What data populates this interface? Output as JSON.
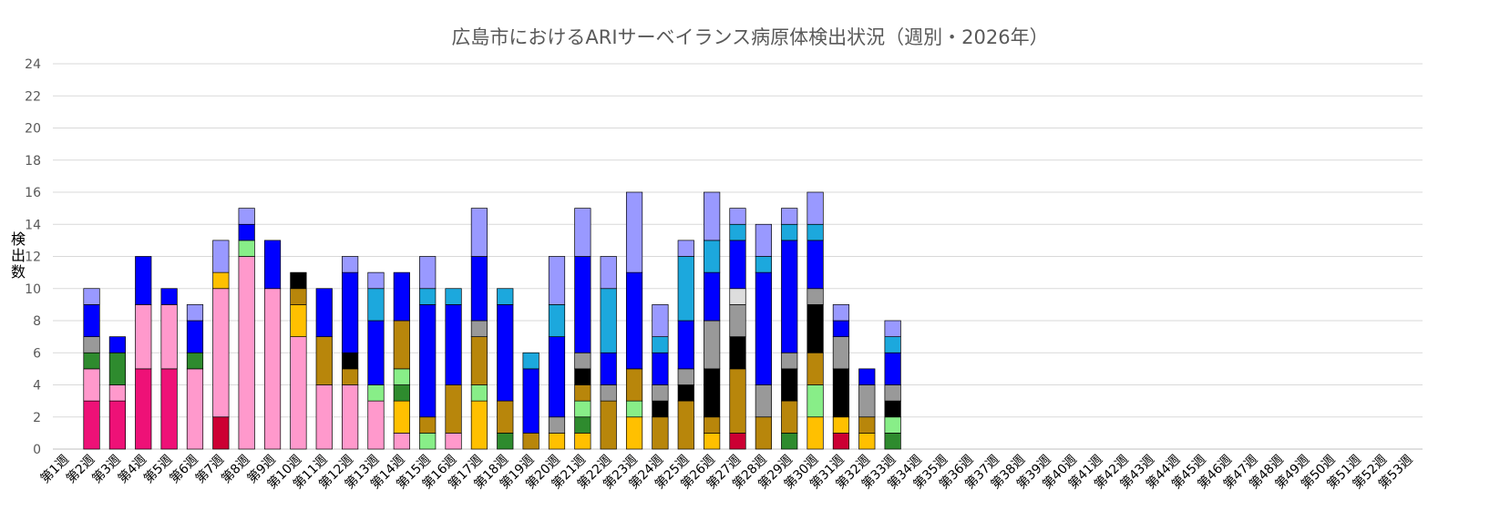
{
  "chart_data": {
    "type": "bar",
    "stacked": true,
    "title": "広島市におけるARIサーベイランス病原体検出状況（週別・2026年）",
    "xlabel": "",
    "ylabel": "検出数",
    "ylim": [
      0,
      24
    ],
    "yticks": [
      0,
      2,
      4,
      6,
      8,
      10,
      12,
      14,
      16,
      18,
      20,
      22,
      24
    ],
    "grid": true,
    "legend": "none",
    "categories": [
      "第1週",
      "第2週",
      "第3週",
      "第4週",
      "第5週",
      "第6週",
      "第7週",
      "第8週",
      "第9週",
      "第10週",
      "第11週",
      "第12週",
      "第13週",
      "第14週",
      "第15週",
      "第16週",
      "第17週",
      "第18週",
      "第19週",
      "第20週",
      "第21週",
      "第22週",
      "第23週",
      "第24週",
      "第25週",
      "第26週",
      "第27週",
      "第28週",
      "第29週",
      "第30週",
      "第31週",
      "第32週",
      "第33週",
      "第34週",
      "第35週",
      "第36週",
      "第37週",
      "第38週",
      "第39週",
      "第40週",
      "第41週",
      "第42週",
      "第43週",
      "第44週",
      "第45週",
      "第46週",
      "第47週",
      "第48週",
      "第49週",
      "第50週",
      "第51週",
      "第52週",
      "第53週"
    ],
    "series": [
      {
        "color": "#ee1177",
        "values": [
          0,
          3,
          3,
          5,
          5,
          0,
          0,
          0,
          0,
          0,
          0,
          0,
          0,
          0,
          0,
          0,
          0,
          0,
          0,
          0,
          0,
          0,
          0,
          0,
          0,
          0,
          0,
          0,
          0,
          0,
          0,
          0,
          0,
          0,
          0,
          0,
          0,
          0,
          0,
          0,
          0,
          0,
          0,
          0,
          0,
          0,
          0,
          0,
          0,
          0,
          0,
          0,
          0
        ]
      },
      {
        "color": "#cc0033",
        "values": [
          0,
          0,
          0,
          0,
          0,
          0,
          2,
          0,
          0,
          0,
          0,
          0,
          0,
          0,
          0,
          0,
          0,
          0,
          0,
          0,
          0,
          0,
          0,
          0,
          0,
          0,
          1,
          0,
          0,
          0,
          1,
          0,
          0,
          0,
          0,
          0,
          0,
          0,
          0,
          0,
          0,
          0,
          0,
          0,
          0,
          0,
          0,
          0,
          0,
          0,
          0,
          0,
          0
        ]
      },
      {
        "color": "#2e8b2e",
        "values": [
          0,
          0,
          0,
          0,
          0,
          0,
          0,
          0,
          0,
          0,
          0,
          0,
          0,
          0,
          0,
          0,
          0,
          1,
          0,
          0,
          0,
          0,
          0,
          0,
          0,
          0,
          0,
          0,
          1,
          0,
          0,
          0,
          1,
          0,
          0,
          0,
          0,
          0,
          0,
          0,
          0,
          0,
          0,
          0,
          0,
          0,
          0,
          0,
          0,
          0,
          0,
          0,
          0
        ]
      },
      {
        "color": "#ff99cc",
        "values": [
          0,
          2,
          1,
          4,
          4,
          5,
          8,
          12,
          10,
          7,
          4,
          4,
          3,
          1,
          0,
          1,
          0,
          0,
          0,
          0,
          0,
          0,
          0,
          0,
          0,
          0,
          0,
          0,
          0,
          0,
          0,
          0,
          0,
          0,
          0,
          0,
          0,
          0,
          0,
          0,
          0,
          0,
          0,
          0,
          0,
          0,
          0,
          0,
          0,
          0,
          0,
          0,
          0
        ]
      },
      {
        "color": "#ffc000",
        "values": [
          0,
          0,
          0,
          0,
          0,
          0,
          1,
          0,
          0,
          2,
          0,
          0,
          0,
          2,
          0,
          0,
          3,
          0,
          0,
          1,
          1,
          0,
          2,
          0,
          0,
          1,
          0,
          0,
          0,
          2,
          1,
          1,
          0,
          0,
          0,
          0,
          0,
          0,
          0,
          0,
          0,
          0,
          0,
          0,
          0,
          0,
          0,
          0,
          0,
          0,
          0,
          0,
          0
        ]
      },
      {
        "color": "#2e8b2e",
        "values": [
          0,
          1,
          2,
          0,
          0,
          1,
          0,
          0,
          0,
          0,
          0,
          0,
          0,
          1,
          0,
          0,
          0,
          0,
          0,
          0,
          1,
          0,
          0,
          0,
          0,
          0,
          0,
          0,
          0,
          0,
          0,
          0,
          0,
          0,
          0,
          0,
          0,
          0,
          0,
          0,
          0,
          0,
          0,
          0,
          0,
          0,
          0,
          0,
          0,
          0,
          0,
          0,
          0
        ]
      },
      {
        "color": "#88ee88",
        "values": [
          0,
          0,
          0,
          0,
          0,
          0,
          0,
          1,
          0,
          0,
          0,
          0,
          1,
          1,
          1,
          0,
          1,
          0,
          0,
          0,
          1,
          0,
          1,
          0,
          0,
          0,
          0,
          0,
          0,
          2,
          0,
          0,
          1,
          0,
          0,
          0,
          0,
          0,
          0,
          0,
          0,
          0,
          0,
          0,
          0,
          0,
          0,
          0,
          0,
          0,
          0,
          0,
          0
        ]
      },
      {
        "color": "#b8860b",
        "values": [
          0,
          0,
          0,
          0,
          0,
          0,
          0,
          0,
          0,
          1,
          3,
          1,
          0,
          3,
          1,
          3,
          3,
          2,
          1,
          0,
          1,
          3,
          2,
          2,
          3,
          1,
          4,
          2,
          2,
          2,
          0,
          1,
          0,
          0,
          0,
          0,
          0,
          0,
          0,
          0,
          0,
          0,
          0,
          0,
          0,
          0,
          0,
          0,
          0,
          0,
          0,
          0,
          0
        ]
      },
      {
        "color": "#000000",
        "values": [
          0,
          0,
          0,
          0,
          0,
          0,
          0,
          0,
          0,
          1,
          0,
          1,
          0,
          0,
          0,
          0,
          0,
          0,
          0,
          0,
          1,
          0,
          0,
          1,
          1,
          3,
          2,
          0,
          2,
          3,
          3,
          0,
          1,
          0,
          0,
          0,
          0,
          0,
          0,
          0,
          0,
          0,
          0,
          0,
          0,
          0,
          0,
          0,
          0,
          0,
          0,
          0,
          0
        ]
      },
      {
        "color": "#999999",
        "values": [
          0,
          1,
          0,
          0,
          0,
          0,
          0,
          0,
          0,
          0,
          0,
          0,
          0,
          0,
          0,
          0,
          1,
          0,
          0,
          1,
          1,
          1,
          0,
          1,
          1,
          3,
          2,
          2,
          1,
          1,
          2,
          2,
          1,
          0,
          0,
          0,
          0,
          0,
          0,
          0,
          0,
          0,
          0,
          0,
          0,
          0,
          0,
          0,
          0,
          0,
          0,
          0,
          0
        ]
      },
      {
        "color": "#dddddd",
        "values": [
          0,
          0,
          0,
          0,
          0,
          0,
          0,
          0,
          0,
          0,
          0,
          0,
          0,
          0,
          0,
          0,
          0,
          0,
          0,
          0,
          0,
          0,
          0,
          0,
          0,
          0,
          1,
          0,
          0,
          0,
          0,
          0,
          0,
          0,
          0,
          0,
          0,
          0,
          0,
          0,
          0,
          0,
          0,
          0,
          0,
          0,
          0,
          0,
          0,
          0,
          0,
          0,
          0
        ]
      },
      {
        "color": "#0000ff",
        "values": [
          0,
          2,
          1,
          3,
          1,
          2,
          0,
          1,
          3,
          0,
          3,
          5,
          4,
          3,
          7,
          5,
          4,
          6,
          4,
          5,
          6,
          2,
          6,
          2,
          3,
          3,
          3,
          7,
          7,
          3,
          1,
          1,
          2,
          0,
          0,
          0,
          0,
          0,
          0,
          0,
          0,
          0,
          0,
          0,
          0,
          0,
          0,
          0,
          0,
          0,
          0,
          0,
          0
        ]
      },
      {
        "color": "#1ca8dd",
        "values": [
          0,
          0,
          0,
          0,
          0,
          0,
          0,
          0,
          0,
          0,
          0,
          0,
          2,
          0,
          1,
          1,
          0,
          1,
          1,
          2,
          0,
          4,
          0,
          1,
          4,
          2,
          1,
          1,
          1,
          1,
          0,
          0,
          1,
          0,
          0,
          0,
          0,
          0,
          0,
          0,
          0,
          0,
          0,
          0,
          0,
          0,
          0,
          0,
          0,
          0,
          0,
          0,
          0
        ]
      },
      {
        "color": "#9999ff",
        "values": [
          0,
          1,
          0,
          0,
          0,
          1,
          2,
          1,
          0,
          0,
          0,
          1,
          1,
          0,
          2,
          0,
          3,
          0,
          0,
          3,
          3,
          2,
          5,
          2,
          1,
          3,
          1,
          2,
          1,
          2,
          1,
          0,
          1,
          0,
          0,
          0,
          0,
          0,
          0,
          0,
          0,
          0,
          0,
          0,
          0,
          0,
          0,
          0,
          0,
          0,
          0,
          0,
          0
        ]
      }
    ]
  }
}
